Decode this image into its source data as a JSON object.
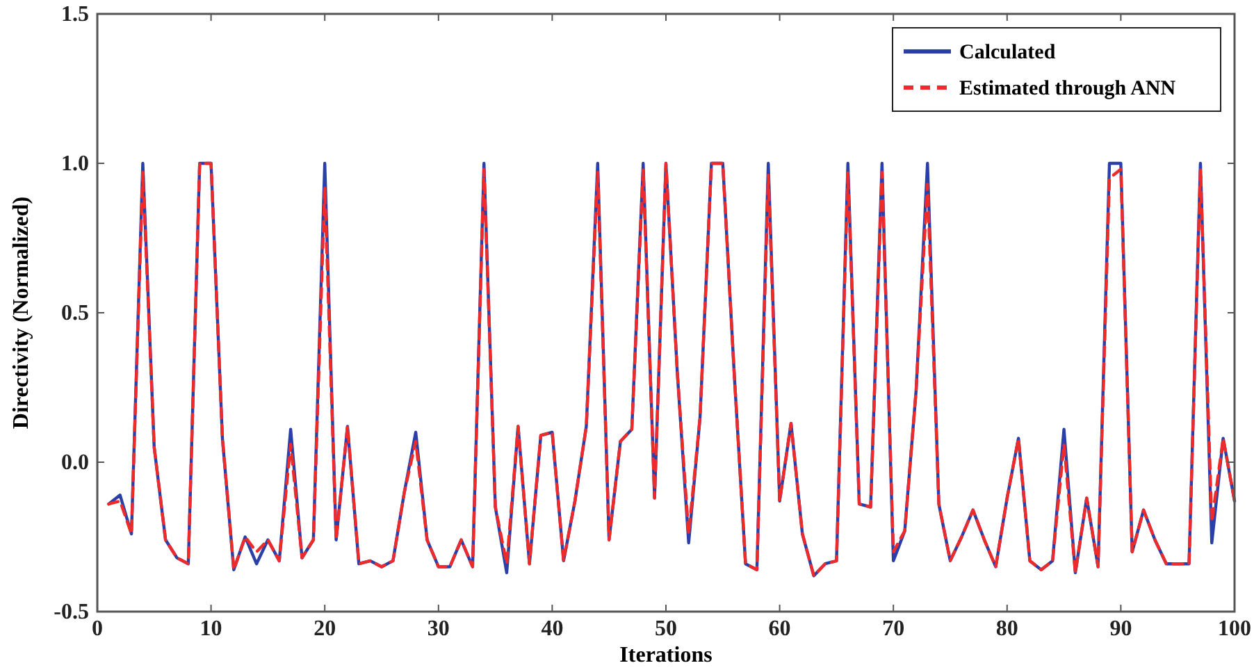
{
  "chart_data": {
    "type": "line",
    "xlabel": "Iterations",
    "ylabel": "Directivity (Normalized)",
    "x": [
      1,
      2,
      3,
      4,
      5,
      6,
      7,
      8,
      9,
      10,
      11,
      12,
      13,
      14,
      15,
      16,
      17,
      18,
      19,
      20,
      21,
      22,
      23,
      24,
      25,
      26,
      27,
      28,
      29,
      30,
      31,
      32,
      33,
      34,
      35,
      36,
      37,
      38,
      39,
      40,
      41,
      42,
      43,
      44,
      45,
      46,
      47,
      48,
      49,
      50,
      51,
      52,
      53,
      54,
      55,
      56,
      57,
      58,
      59,
      60,
      61,
      62,
      63,
      64,
      65,
      66,
      67,
      68,
      69,
      70,
      71,
      72,
      73,
      74,
      75,
      76,
      77,
      78,
      79,
      80,
      81,
      82,
      83,
      84,
      85,
      86,
      87,
      88,
      89,
      90,
      91,
      92,
      93,
      94,
      95,
      96,
      97,
      98,
      99,
      100
    ],
    "xlim": [
      0,
      100
    ],
    "xticks": [
      0,
      10,
      20,
      30,
      40,
      50,
      60,
      70,
      80,
      90,
      100
    ],
    "ylim": [
      -0.5,
      1.5
    ],
    "yticks": [
      {
        "value": -0.5,
        "label": "-0.5"
      },
      {
        "value": 0,
        "label": "0.0"
      },
      {
        "value": 0.5,
        "label": "0.5"
      },
      {
        "value": 1,
        "label": "1.0"
      },
      {
        "value": 1.5,
        "label": "1.5"
      }
    ],
    "grid": false,
    "legend": "top right",
    "line_style": "solid",
    "marker": "none",
    "series": [
      {
        "name": "Calculated",
        "color": "#2b3fa8",
        "values": [
          -0.14,
          -0.11,
          -0.24,
          1.0,
          0.05,
          -0.26,
          -0.32,
          -0.34,
          1.0,
          1.0,
          0.08,
          -0.36,
          -0.25,
          -0.34,
          -0.26,
          -0.33,
          0.11,
          -0.32,
          -0.26,
          1.0,
          -0.26,
          0.12,
          -0.34,
          -0.33,
          -0.35,
          -0.33,
          -0.1,
          0.1,
          -0.26,
          -0.35,
          -0.35,
          -0.26,
          -0.35,
          1.0,
          -0.15,
          -0.37,
          0.12,
          -0.34,
          0.09,
          0.1,
          -0.33,
          -0.13,
          0.12,
          1.0,
          -0.26,
          0.07,
          0.11,
          1.0,
          -0.12,
          1.0,
          0.3,
          -0.27,
          0.15,
          1.0,
          1.0,
          0.3,
          -0.34,
          -0.36,
          1.0,
          -0.13,
          0.13,
          -0.24,
          -0.38,
          -0.34,
          -0.33,
          1.0,
          -0.14,
          -0.15,
          1.0,
          -0.33,
          -0.23,
          0.24,
          1.0,
          -0.14,
          -0.33,
          -0.25,
          -0.16,
          -0.26,
          -0.35,
          -0.12,
          0.08,
          -0.33,
          -0.36,
          -0.33,
          0.11,
          -0.37,
          -0.12,
          -0.35,
          1.0,
          1.0,
          -0.3,
          -0.16,
          -0.26,
          -0.34,
          -0.34,
          -0.34,
          1.0,
          -0.27,
          0.08,
          -0.13
        ]
      },
      {
        "name": "Estimated through ANN",
        "color": "#ee2b2b",
        "line_style": "dashed",
        "values": [
          -0.14,
          -0.13,
          -0.24,
          0.97,
          0.05,
          -0.26,
          -0.32,
          -0.34,
          1.0,
          1.0,
          0.08,
          -0.36,
          -0.25,
          -0.3,
          -0.26,
          -0.33,
          0.06,
          -0.32,
          -0.26,
          0.92,
          -0.26,
          0.12,
          -0.34,
          -0.33,
          -0.35,
          -0.33,
          -0.1,
          0.07,
          -0.26,
          -0.35,
          -0.35,
          -0.26,
          -0.35,
          0.98,
          -0.15,
          -0.34,
          0.12,
          -0.34,
          0.09,
          0.1,
          -0.33,
          -0.13,
          0.12,
          0.97,
          -0.26,
          0.07,
          0.11,
          0.98,
          -0.12,
          1.0,
          0.3,
          -0.24,
          0.15,
          1.0,
          1.0,
          0.3,
          -0.34,
          -0.36,
          0.96,
          -0.13,
          0.13,
          -0.24,
          -0.38,
          -0.34,
          -0.33,
          0.97,
          -0.14,
          -0.15,
          0.97,
          -0.3,
          -0.23,
          0.24,
          0.93,
          -0.14,
          -0.33,
          -0.25,
          -0.16,
          -0.26,
          -0.35,
          -0.12,
          0.08,
          -0.33,
          -0.36,
          -0.33,
          0.06,
          -0.37,
          -0.12,
          -0.35,
          0.95,
          0.98,
          -0.3,
          -0.16,
          -0.26,
          -0.34,
          -0.34,
          -0.34,
          0.98,
          -0.2,
          0.08,
          -0.13
        ]
      }
    ]
  }
}
